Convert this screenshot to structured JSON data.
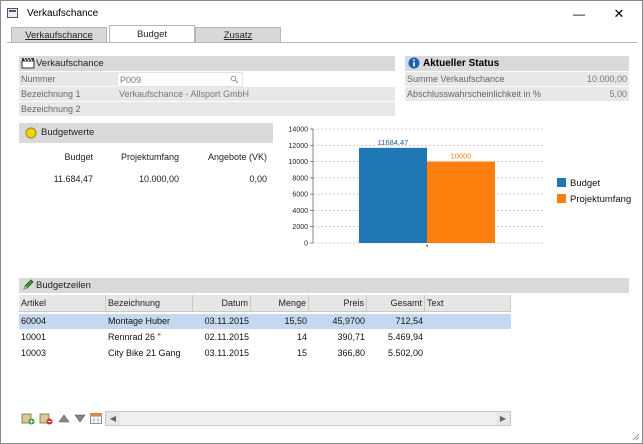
{
  "window": {
    "title": "Verkaufschance",
    "minimize_glyph": "—",
    "close_glyph": "✕"
  },
  "tabs": [
    {
      "label": "Verkaufschance",
      "active": false
    },
    {
      "label": "Budget",
      "active": true
    },
    {
      "label": "Zusatz",
      "active": false
    }
  ],
  "verkaufschance": {
    "header": "Verkaufschance",
    "fields": [
      {
        "label": "Nummer",
        "value": "P009"
      },
      {
        "label": "Bezeichnung 1",
        "value": "Verkaufschance - Allsport GmbH"
      },
      {
        "label": "Bezeichnung 2",
        "value": ""
      }
    ]
  },
  "status": {
    "header": "Aktueller Status",
    "fields": [
      {
        "label": "Summe Verkaufschance",
        "value": "10.000,00"
      },
      {
        "label": "Abschlusswahrscheinlichkeit in %",
        "value": "5,00"
      }
    ]
  },
  "budgetwerte": {
    "header": "Budgetwerte",
    "columns": [
      "Budget",
      "Projektumfang",
      "Angebote (VK)"
    ],
    "values": [
      "11.684,47",
      "10.000,00",
      "0,00"
    ]
  },
  "chart_data": {
    "type": "bar",
    "categories": [
      ""
    ],
    "series": [
      {
        "name": "Budget",
        "values": [
          11684.47
        ],
        "label": "11684,47",
        "color": "#1f77b4"
      },
      {
        "name": "Projektumfang",
        "values": [
          10000
        ],
        "label": "10000",
        "color": "#ff7f0e"
      }
    ],
    "ylim": [
      0,
      14000
    ],
    "yticks": [
      "0",
      "2000",
      "4000",
      "6000",
      "8000",
      "10000",
      "12000",
      "14000"
    ],
    "grid": true,
    "legend": "right"
  },
  "budgetzeilen": {
    "header": "Budgetzeilen",
    "columns": [
      "Artikel",
      "Bezeichnung",
      "Datum",
      "Menge",
      "Preis",
      "Gesamt",
      "Text"
    ],
    "rows": [
      {
        "artikel": "60004",
        "bezeichnung": "Montage Huber",
        "datum": "03.11.2015",
        "menge": "15,50",
        "preis": "45,9700",
        "gesamt": "712,54",
        "text": "",
        "selected": true
      },
      {
        "artikel": "10001",
        "bezeichnung": "Rennrad 26 \"",
        "datum": "02.11.2015",
        "menge": "14",
        "preis": "390,71",
        "gesamt": "5.469,94",
        "text": "",
        "selected": false
      },
      {
        "artikel": "10003",
        "bezeichnung": "City Bike 21 Gang",
        "datum": "03.11.2015",
        "menge": "15",
        "preis": "366,80",
        "gesamt": "5.502,00",
        "text": "",
        "selected": false
      }
    ]
  },
  "toolbar": {
    "icons": [
      "add-row-icon",
      "delete-row-icon",
      "move-up-icon",
      "move-down-icon",
      "table-settings-icon"
    ]
  },
  "colors": {
    "section_bg": "#d9d9d9",
    "field_bg": "#e8e8e8",
    "selection": "#c6d8f0",
    "status_icon": "#1e5fb4",
    "budget_icon": "#f2d600"
  }
}
